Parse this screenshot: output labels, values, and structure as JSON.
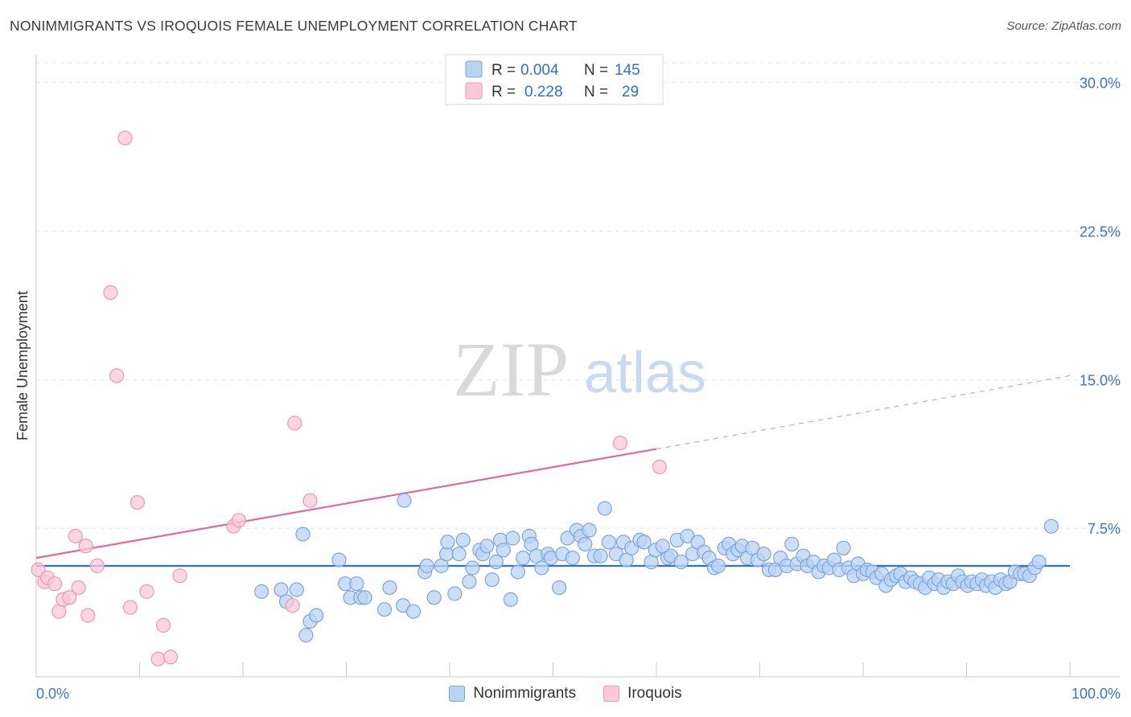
{
  "title": "NONIMMIGRANTS VS IROQUOIS FEMALE UNEMPLOYMENT CORRELATION CHART",
  "source": "Source: ZipAtlas.com",
  "watermark": {
    "zip": "ZIP",
    "atlas": "atlas"
  },
  "legend_box": {
    "rows": [
      {
        "r_label": "R =",
        "r_value": "0.004",
        "n_label": "N =",
        "n_value": "145",
        "color": "#7aa6e0"
      },
      {
        "r_label": "R =",
        "r_value": "0.228",
        "n_label": "N =",
        "n_value": "29",
        "color": "#ee97b1"
      }
    ]
  },
  "legend_bottom": {
    "items": [
      {
        "label": "Nonimmigrants",
        "color": "#b9d3f3"
      },
      {
        "label": "Iroquois",
        "color": "#fbc9d8"
      }
    ]
  },
  "chart_data": {
    "type": "scatter",
    "title": "NONIMMIGRANTS VS IROQUOIS FEMALE UNEMPLOYMENT CORRELATION CHART",
    "xlabel": "",
    "ylabel": "Female Unemployment",
    "xlim": [
      0,
      100
    ],
    "ylim": [
      0,
      31
    ],
    "x_tick_labels": [
      {
        "value": 0,
        "label": "0.0%"
      },
      {
        "value": 100,
        "label": "100.0%"
      }
    ],
    "y_tick_labels": [
      {
        "value": 7.5,
        "label": "7.5%"
      },
      {
        "value": 15.0,
        "label": "15.0%"
      },
      {
        "value": 22.5,
        "label": "22.5%"
      },
      {
        "value": 30.0,
        "label": "30.0%"
      }
    ],
    "series": [
      {
        "name": "Nonimmigrants",
        "color": "#7aa6e0",
        "fill": "#b9d3f3",
        "trend": {
          "x0": 0,
          "y0": 5.6,
          "x1": 100,
          "y1": 5.6,
          "dash_from": null
        },
        "points": [
          [
            21.8,
            4.3
          ],
          [
            23.7,
            4.4
          ],
          [
            24.2,
            3.8
          ],
          [
            25.2,
            4.4
          ],
          [
            25.8,
            7.2
          ],
          [
            26.5,
            2.8
          ],
          [
            26.1,
            2.1
          ],
          [
            27.1,
            3.1
          ],
          [
            29.3,
            5.9
          ],
          [
            29.9,
            4.7
          ],
          [
            30.4,
            4.0
          ],
          [
            31.0,
            4.7
          ],
          [
            31.4,
            4.0
          ],
          [
            31.8,
            4.0
          ],
          [
            33.7,
            3.4
          ],
          [
            34.2,
            4.5
          ],
          [
            35.5,
            3.6
          ],
          [
            35.6,
            8.9
          ],
          [
            36.5,
            3.3
          ],
          [
            37.6,
            5.3
          ],
          [
            37.8,
            5.6
          ],
          [
            38.5,
            4.0
          ],
          [
            39.2,
            5.6
          ],
          [
            39.7,
            6.2
          ],
          [
            39.8,
            6.8
          ],
          [
            40.5,
            4.2
          ],
          [
            40.9,
            6.2
          ],
          [
            41.3,
            6.9
          ],
          [
            41.9,
            4.8
          ],
          [
            42.2,
            5.5
          ],
          [
            42.9,
            6.4
          ],
          [
            43.2,
            6.2
          ],
          [
            43.6,
            6.6
          ],
          [
            44.1,
            4.9
          ],
          [
            44.5,
            5.8
          ],
          [
            44.9,
            6.9
          ],
          [
            45.2,
            6.4
          ],
          [
            45.9,
            3.9
          ],
          [
            46.1,
            7.0
          ],
          [
            46.6,
            5.3
          ],
          [
            47.1,
            6.0
          ],
          [
            47.7,
            7.1
          ],
          [
            47.9,
            6.7
          ],
          [
            48.4,
            6.1
          ],
          [
            48.9,
            5.5
          ],
          [
            49.5,
            6.2
          ],
          [
            49.8,
            6.0
          ],
          [
            50.6,
            4.5
          ],
          [
            50.9,
            6.2
          ],
          [
            51.4,
            7.0
          ],
          [
            51.9,
            6.0
          ],
          [
            52.3,
            7.4
          ],
          [
            52.7,
            7.1
          ],
          [
            53.1,
            6.7
          ],
          [
            53.5,
            7.4
          ],
          [
            54.0,
            6.1
          ],
          [
            54.6,
            6.1
          ],
          [
            55.0,
            8.5
          ],
          [
            55.4,
            6.8
          ],
          [
            56.1,
            6.2
          ],
          [
            56.8,
            6.8
          ],
          [
            57.1,
            5.9
          ],
          [
            57.6,
            6.5
          ],
          [
            58.4,
            6.9
          ],
          [
            58.8,
            6.8
          ],
          [
            59.5,
            5.8
          ],
          [
            59.9,
            6.4
          ],
          [
            60.6,
            6.6
          ],
          [
            61.1,
            6.0
          ],
          [
            61.4,
            6.1
          ],
          [
            62.0,
            6.9
          ],
          [
            62.4,
            5.8
          ],
          [
            63.0,
            7.1
          ],
          [
            63.5,
            6.2
          ],
          [
            64.0,
            6.8
          ],
          [
            64.6,
            6.3
          ],
          [
            65.1,
            6.0
          ],
          [
            65.6,
            5.5
          ],
          [
            66.0,
            5.6
          ],
          [
            66.6,
            6.5
          ],
          [
            67.0,
            6.7
          ],
          [
            67.4,
            6.2
          ],
          [
            67.9,
            6.4
          ],
          [
            68.3,
            6.6
          ],
          [
            68.8,
            6.0
          ],
          [
            69.3,
            6.5
          ],
          [
            69.8,
            5.9
          ],
          [
            70.4,
            6.2
          ],
          [
            70.9,
            5.4
          ],
          [
            71.5,
            5.4
          ],
          [
            72.0,
            6.0
          ],
          [
            72.6,
            5.6
          ],
          [
            73.1,
            6.7
          ],
          [
            73.6,
            5.7
          ],
          [
            74.2,
            6.1
          ],
          [
            74.6,
            5.6
          ],
          [
            75.2,
            5.8
          ],
          [
            75.7,
            5.3
          ],
          [
            76.2,
            5.6
          ],
          [
            76.7,
            5.5
          ],
          [
            77.2,
            5.9
          ],
          [
            77.7,
            5.4
          ],
          [
            78.1,
            6.5
          ],
          [
            78.6,
            5.5
          ],
          [
            79.1,
            5.1
          ],
          [
            79.5,
            5.7
          ],
          [
            80.0,
            5.2
          ],
          [
            80.4,
            5.4
          ],
          [
            80.9,
            5.3
          ],
          [
            81.3,
            5.0
          ],
          [
            81.8,
            5.2
          ],
          [
            82.2,
            4.6
          ],
          [
            82.7,
            4.9
          ],
          [
            83.2,
            5.1
          ],
          [
            83.6,
            5.2
          ],
          [
            84.1,
            4.8
          ],
          [
            84.6,
            5.0
          ],
          [
            85.0,
            4.8
          ],
          [
            85.5,
            4.7
          ],
          [
            86.0,
            4.5
          ],
          [
            86.4,
            5.0
          ],
          [
            86.9,
            4.7
          ],
          [
            87.3,
            4.9
          ],
          [
            87.8,
            4.5
          ],
          [
            88.2,
            4.8
          ],
          [
            88.7,
            4.7
          ],
          [
            89.2,
            5.1
          ],
          [
            89.6,
            4.8
          ],
          [
            90.1,
            4.6
          ],
          [
            90.5,
            4.8
          ],
          [
            91.0,
            4.7
          ],
          [
            91.5,
            4.9
          ],
          [
            91.9,
            4.6
          ],
          [
            92.4,
            4.8
          ],
          [
            92.8,
            4.5
          ],
          [
            93.3,
            4.9
          ],
          [
            93.8,
            4.7
          ],
          [
            94.2,
            4.8
          ],
          [
            94.7,
            5.3
          ],
          [
            95.2,
            5.2
          ],
          [
            95.6,
            5.2
          ],
          [
            96.1,
            5.1
          ],
          [
            96.6,
            5.5
          ],
          [
            97.0,
            5.8
          ],
          [
            98.2,
            7.6
          ]
        ]
      },
      {
        "name": "Iroquois",
        "color": "#ee97b1",
        "fill": "#fbc9d8",
        "trend": {
          "x0": 0,
          "y0": 6.0,
          "x1": 60,
          "y1": 11.5,
          "x_end": 100,
          "y_end": 15.2
        },
        "points": [
          [
            0.2,
            5.4
          ],
          [
            0.8,
            4.8
          ],
          [
            1.1,
            5.0
          ],
          [
            1.8,
            4.7
          ],
          [
            2.2,
            3.3
          ],
          [
            2.6,
            3.9
          ],
          [
            3.2,
            4.0
          ],
          [
            3.8,
            7.1
          ],
          [
            4.1,
            4.5
          ],
          [
            4.8,
            6.6
          ],
          [
            5.0,
            3.1
          ],
          [
            5.9,
            5.6
          ],
          [
            7.2,
            19.4
          ],
          [
            7.8,
            15.2
          ],
          [
            8.6,
            27.2
          ],
          [
            9.1,
            3.5
          ],
          [
            9.8,
            8.8
          ],
          [
            10.7,
            4.3
          ],
          [
            11.8,
            0.9
          ],
          [
            12.3,
            2.6
          ],
          [
            13.0,
            1.0
          ],
          [
            13.9,
            5.1
          ],
          [
            19.1,
            7.6
          ],
          [
            19.6,
            7.9
          ],
          [
            24.8,
            3.6
          ],
          [
            25.0,
            12.8
          ],
          [
            26.5,
            8.9
          ],
          [
            56.5,
            11.8
          ],
          [
            60.3,
            10.6
          ]
        ]
      }
    ]
  }
}
